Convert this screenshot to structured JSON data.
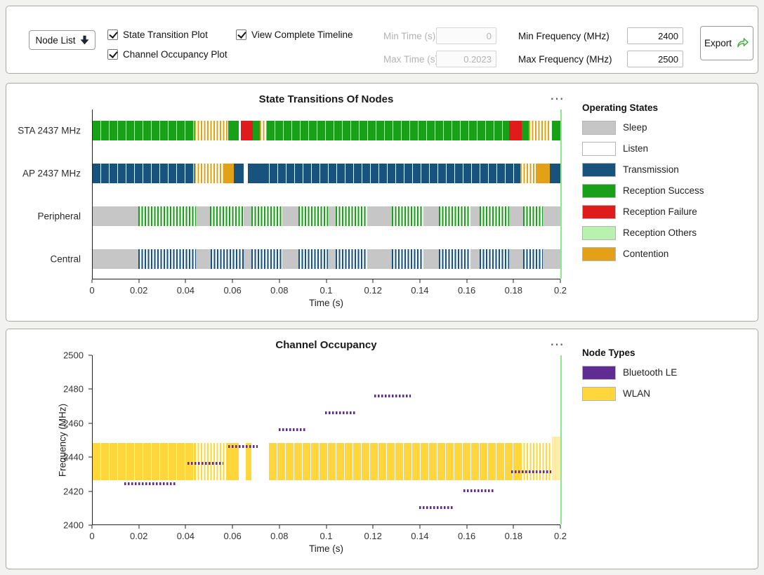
{
  "colors": {
    "app_bg": "#f2f2f0",
    "panel_border": "#a8a8a8",
    "cursor_green": "#8de88d",
    "sleep": "#c6c6c6",
    "listen": "#ffffff",
    "transmission": "#17537d",
    "reception_success": "#18a018",
    "reception_failure": "#e01b1b",
    "reception_others": "#b9f2ae",
    "contention": "#e2a117",
    "ble": "#5f2d91",
    "wlan": "#ffd63c"
  },
  "toolbar": {
    "node_list_label": "Node List",
    "checkboxes": [
      {
        "label": "State Transition Plot",
        "checked": true
      },
      {
        "label": "Channel Occupancy Plot",
        "checked": true
      },
      {
        "label": "View Complete Timeline",
        "checked": true
      }
    ],
    "fields": [
      {
        "label": "Min Time (s)",
        "value": "0",
        "disabled": true
      },
      {
        "label": "Max Time (s)",
        "value": "0.2023",
        "disabled": true
      },
      {
        "label": "Min Frequency (MHz)",
        "value": "2400",
        "disabled": false
      },
      {
        "label": "Max Frequency (MHz)",
        "value": "2500",
        "disabled": false
      }
    ],
    "export_label": "Export"
  },
  "chart_data": [
    {
      "type": "timeline",
      "title": "State Transitions Of Nodes",
      "menu_icon": "⋯",
      "xlabel": "Time (s)",
      "xlim": [
        0,
        0.2
      ],
      "xticks": [
        "0",
        "0.02",
        "0.04",
        "0.06",
        "0.08",
        "0.1",
        "0.12",
        "0.14",
        "0.16",
        "0.18",
        "0.2"
      ],
      "rows": [
        "STA 2437 MHz",
        "AP 2437 MHz",
        "Peripheral",
        "Central"
      ],
      "legend_title": "Operating States",
      "legend_position": "right",
      "legend": [
        {
          "label": "Sleep",
          "state": "sleep"
        },
        {
          "label": "Listen",
          "state": "listen"
        },
        {
          "label": "Transmission",
          "state": "transmission"
        },
        {
          "label": "Reception Success",
          "state": "reception_success"
        },
        {
          "label": "Reception Failure",
          "state": "reception_failure"
        },
        {
          "label": "Reception Others",
          "state": "reception_others"
        },
        {
          "label": "Contention",
          "state": "contention"
        }
      ],
      "segments": {
        "STA 2437 MHz": [
          {
            "t0": 0.0,
            "t1": 0.0435,
            "state": "reception_success",
            "style": "blocks"
          },
          {
            "t0": 0.0435,
            "t1": 0.058,
            "state": "contention",
            "style": "sparse"
          },
          {
            "t0": 0.058,
            "t1": 0.0625,
            "state": "reception_success",
            "style": "solid"
          },
          {
            "t0": 0.0635,
            "t1": 0.0685,
            "state": "reception_failure",
            "style": "solid"
          },
          {
            "t0": 0.0685,
            "t1": 0.0715,
            "state": "reception_success",
            "style": "solid"
          },
          {
            "t0": 0.0715,
            "t1": 0.0745,
            "state": "contention",
            "style": "sparse"
          },
          {
            "t0": 0.0745,
            "t1": 0.178,
            "state": "reception_success",
            "style": "blocks"
          },
          {
            "t0": 0.178,
            "t1": 0.1835,
            "state": "reception_failure",
            "style": "solid"
          },
          {
            "t0": 0.1835,
            "t1": 0.1865,
            "state": "reception_success",
            "style": "solid"
          },
          {
            "t0": 0.1865,
            "t1": 0.1955,
            "state": "contention",
            "style": "sparse"
          },
          {
            "t0": 0.1965,
            "t1": 0.2,
            "state": "reception_success",
            "style": "solid"
          }
        ],
        "AP 2437 MHz": [
          {
            "t0": 0.0,
            "t1": 0.0435,
            "state": "transmission",
            "style": "blocks"
          },
          {
            "t0": 0.0435,
            "t1": 0.056,
            "state": "contention",
            "style": "sparse"
          },
          {
            "t0": 0.056,
            "t1": 0.0605,
            "state": "contention",
            "style": "solid"
          },
          {
            "t0": 0.0605,
            "t1": 0.0645,
            "state": "transmission",
            "style": "solid"
          },
          {
            "t0": 0.0665,
            "t1": 0.072,
            "state": "transmission",
            "style": "solid"
          },
          {
            "t0": 0.072,
            "t1": 0.183,
            "state": "transmission",
            "style": "blocks"
          },
          {
            "t0": 0.183,
            "t1": 0.1895,
            "state": "contention",
            "style": "sparse"
          },
          {
            "t0": 0.1895,
            "t1": 0.1955,
            "state": "contention",
            "style": "solid"
          },
          {
            "t0": 0.1955,
            "t1": 0.2,
            "state": "transmission",
            "style": "solid"
          }
        ],
        "Peripheral": [
          {
            "t0": 0.0,
            "t1": 0.2,
            "state": "sleep",
            "style": "solid"
          },
          {
            "t0": 0.0195,
            "t1": 0.044,
            "state": "reception_success",
            "style": "sparse"
          },
          {
            "t0": 0.05,
            "t1": 0.0645,
            "state": "reception_success",
            "style": "sparse"
          },
          {
            "t0": 0.068,
            "t1": 0.081,
            "state": "reception_success",
            "style": "sparse"
          },
          {
            "t0": 0.088,
            "t1": 0.1005,
            "state": "reception_success",
            "style": "sparse"
          },
          {
            "t0": 0.104,
            "t1": 0.1175,
            "state": "reception_success",
            "style": "sparse"
          },
          {
            "t0": 0.128,
            "t1": 0.1415,
            "state": "reception_success",
            "style": "sparse"
          },
          {
            "t0": 0.148,
            "t1": 0.1615,
            "state": "reception_success",
            "style": "sparse"
          },
          {
            "t0": 0.1655,
            "t1": 0.178,
            "state": "reception_success",
            "style": "sparse"
          },
          {
            "t0": 0.184,
            "t1": 0.1925,
            "state": "reception_success",
            "style": "sparse"
          }
        ],
        "Central": [
          {
            "t0": 0.0,
            "t1": 0.2,
            "state": "sleep",
            "style": "solid"
          },
          {
            "t0": 0.0195,
            "t1": 0.044,
            "state": "transmission",
            "style": "sparse"
          },
          {
            "t0": 0.0505,
            "t1": 0.0645,
            "state": "transmission",
            "style": "sparse"
          },
          {
            "t0": 0.068,
            "t1": 0.081,
            "state": "transmission",
            "style": "sparse"
          },
          {
            "t0": 0.088,
            "t1": 0.1005,
            "state": "transmission",
            "style": "sparse"
          },
          {
            "t0": 0.104,
            "t1": 0.1175,
            "state": "transmission",
            "style": "sparse"
          },
          {
            "t0": 0.128,
            "t1": 0.1415,
            "state": "transmission",
            "style": "sparse"
          },
          {
            "t0": 0.148,
            "t1": 0.1615,
            "state": "transmission",
            "style": "sparse"
          },
          {
            "t0": 0.1655,
            "t1": 0.178,
            "state": "transmission",
            "style": "sparse"
          },
          {
            "t0": 0.184,
            "t1": 0.1925,
            "state": "transmission",
            "style": "sparse"
          }
        ]
      }
    },
    {
      "type": "occupancy",
      "title": "Channel Occupancy",
      "menu_icon": "⋯",
      "xlabel": "Time (s)",
      "ylabel": "Frequency (MHz)",
      "xlim": [
        0,
        0.2
      ],
      "ylim": [
        2400,
        2500
      ],
      "xticks": [
        "0",
        "0.02",
        "0.04",
        "0.06",
        "0.08",
        "0.1",
        "0.12",
        "0.14",
        "0.16",
        "0.18",
        "0.2"
      ],
      "yticks": [
        "2400",
        "2420",
        "2440",
        "2460",
        "2480",
        "2500"
      ],
      "legend_title": "Node Types",
      "legend_position": "right",
      "legend": [
        {
          "label": "Bluetooth LE",
          "state": "ble"
        },
        {
          "label": "WLAN",
          "state": "wlan"
        }
      ],
      "wlan_segments": [
        {
          "t0": 0.0,
          "t1": 0.0435,
          "f0": 2426,
          "f1": 2448,
          "style": "blocks"
        },
        {
          "t0": 0.0435,
          "t1": 0.057,
          "f0": 2426,
          "f1": 2448,
          "style": "sparse"
        },
        {
          "t0": 0.057,
          "t1": 0.0625,
          "f0": 2426,
          "f1": 2448,
          "style": "solid"
        },
        {
          "t0": 0.0655,
          "t1": 0.068,
          "f0": 2426,
          "f1": 2448,
          "style": "solid"
        },
        {
          "t0": 0.0755,
          "t1": 0.183,
          "f0": 2426,
          "f1": 2448,
          "style": "blocks"
        },
        {
          "t0": 0.183,
          "t1": 0.196,
          "f0": 2426,
          "f1": 2448,
          "style": "sparse"
        },
        {
          "t0": 0.1965,
          "t1": 0.2,
          "f0": 2426,
          "f1": 2452,
          "style": "light"
        }
      ],
      "ble_segments": [
        {
          "freq": 2424,
          "t0": 0.0135,
          "t1": 0.036
        },
        {
          "freq": 2436,
          "t0": 0.0405,
          "t1": 0.056
        },
        {
          "freq": 2446,
          "t0": 0.058,
          "t1": 0.0705
        },
        {
          "freq": 2456,
          "t0": 0.0795,
          "t1": 0.0915
        },
        {
          "freq": 2466,
          "t0": 0.0995,
          "t1": 0.113
        },
        {
          "freq": 2476,
          "t0": 0.1205,
          "t1": 0.136
        },
        {
          "freq": 2410,
          "t0": 0.1395,
          "t1": 0.154
        },
        {
          "freq": 2420,
          "t0": 0.1585,
          "t1": 0.172
        },
        {
          "freq": 2431,
          "t0": 0.179,
          "t1": 0.196
        }
      ]
    }
  ]
}
